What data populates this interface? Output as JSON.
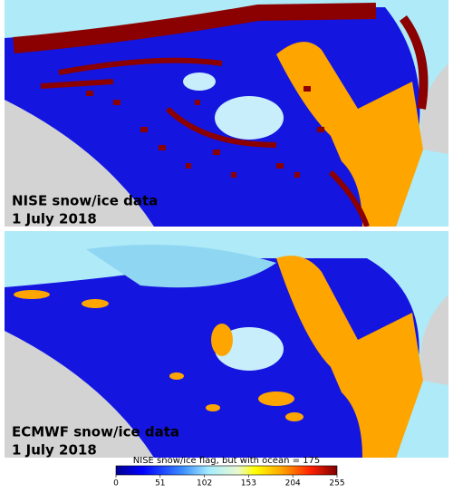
{
  "panels": [
    {
      "title": "NISE snow/ice data",
      "date": "1 July 2018"
    },
    {
      "title": "ECMWF snow/ice data",
      "date": "1 July 2018"
    }
  ],
  "colorbar": {
    "title": "NISE snow/ice flag, but with ocean = 175",
    "lim": [
      0,
      255
    ],
    "ticks": [
      0,
      51,
      102,
      153,
      204,
      255
    ]
  }
}
